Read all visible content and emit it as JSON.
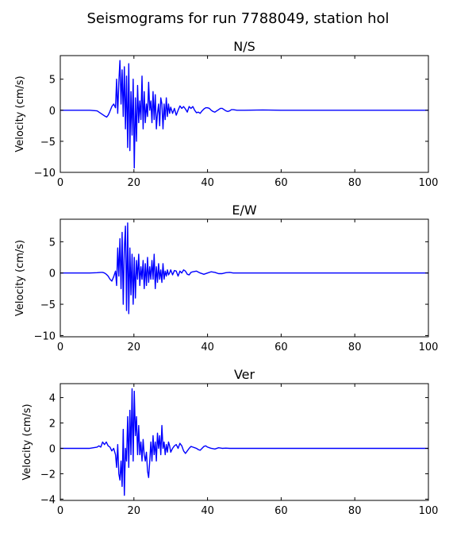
{
  "figure": {
    "title": "Seismograms for run 7788049, station hol"
  },
  "chart_data": [
    {
      "type": "line",
      "title": "N/S",
      "xlabel": "",
      "ylabel": "Velocity (cm/s)",
      "xlim": [
        0,
        100
      ],
      "ylim": [
        -10,
        8.8
      ],
      "xticks": [
        0,
        20,
        40,
        60,
        80,
        100
      ],
      "yticks": [
        -10,
        -5,
        0,
        5
      ],
      "grid": false,
      "legend": "none",
      "color": "#0000ff",
      "x": [
        0,
        8,
        10,
        11,
        12,
        12.6,
        13,
        13.4,
        14,
        14.5,
        15,
        15.3,
        15.6,
        15.9,
        16.2,
        16.5,
        16.8,
        17.1,
        17.4,
        17.7,
        18,
        18.3,
        18.6,
        18.9,
        19.2,
        19.5,
        19.8,
        20.1,
        20.4,
        20.7,
        21,
        21.3,
        21.6,
        21.9,
        22.2,
        22.5,
        22.8,
        23.1,
        23.4,
        23.7,
        24,
        24.3,
        24.6,
        24.9,
        25.2,
        25.5,
        25.8,
        26.1,
        26.4,
        26.7,
        27,
        27.3,
        27.6,
        27.9,
        28.2,
        28.5,
        28.8,
        29.1,
        29.4,
        29.7,
        30,
        30.5,
        31,
        31.5,
        32,
        32.5,
        33,
        33.5,
        34,
        34.5,
        35,
        35.5,
        36,
        36.5,
        37,
        37.5,
        38,
        38.5,
        39,
        39.5,
        40,
        40.5,
        41,
        41.5,
        42,
        42.5,
        43,
        43.5,
        44,
        44.5,
        45,
        45.5,
        46,
        46.5,
        47,
        48,
        50,
        55,
        60,
        70,
        80,
        90,
        100
      ],
      "y": [
        0,
        0,
        -0.1,
        -0.5,
        -0.9,
        -1.1,
        -0.8,
        -0.3,
        0.6,
        1.0,
        0.4,
        5.0,
        -0.5,
        4.5,
        8.0,
        1.0,
        6.5,
        -1.0,
        7.0,
        -3.0,
        5.5,
        -6.0,
        7.5,
        -6.5,
        3.0,
        -4.0,
        5.0,
        -9.3,
        2.0,
        -5.0,
        4.0,
        -2.0,
        1.5,
        -1.5,
        5.5,
        -3.0,
        3.0,
        -2.0,
        1.0,
        -1.0,
        4.5,
        0.0,
        1.5,
        -2.0,
        3.0,
        -1.5,
        2.5,
        -3.0,
        -0.5,
        1.0,
        -2.5,
        2.0,
        1.0,
        -3.0,
        1.0,
        -1.5,
        2.0,
        -1.0,
        1.0,
        -0.5,
        0.5,
        -0.5,
        0.3,
        -0.8,
        0.0,
        0.7,
        0.3,
        0.6,
        0.2,
        -0.3,
        0.6,
        0.3,
        0.6,
        0.0,
        -0.4,
        -0.3,
        -0.5,
        -0.1,
        0.2,
        0.4,
        0.4,
        0.3,
        0.0,
        -0.2,
        -0.3,
        -0.1,
        0.1,
        0.3,
        0.3,
        0.1,
        -0.1,
        -0.2,
        -0.1,
        0.1,
        0.1,
        0.0,
        0.0,
        0.05,
        0.0,
        0.0,
        0.0,
        0.0,
        0.0
      ]
    },
    {
      "type": "line",
      "title": "E/W",
      "xlabel": "",
      "ylabel": "Velocity (cm/s)",
      "xlim": [
        0,
        100
      ],
      "ylim": [
        -10.2,
        8.6
      ],
      "xticks": [
        0,
        20,
        40,
        60,
        80,
        100
      ],
      "yticks": [
        -10,
        -5,
        0,
        5
      ],
      "grid": false,
      "legend": "none",
      "color": "#0000ff",
      "x": [
        0,
        8,
        10,
        11,
        11.5,
        12,
        12.5,
        13,
        13.5,
        14,
        14.5,
        15,
        15.3,
        15.6,
        15.9,
        16.2,
        16.5,
        16.8,
        17.1,
        17.4,
        17.7,
        18,
        18.3,
        18.6,
        18.9,
        19.2,
        19.5,
        19.8,
        20.1,
        20.4,
        20.7,
        21,
        21.3,
        21.6,
        21.9,
        22.2,
        22.5,
        22.8,
        23.1,
        23.4,
        23.7,
        24,
        24.3,
        24.6,
        24.9,
        25.2,
        25.5,
        25.8,
        26.1,
        26.4,
        26.7,
        27,
        27.3,
        27.6,
        27.9,
        28.2,
        28.5,
        28.8,
        29.1,
        29.4,
        29.7,
        30,
        30.5,
        31,
        31.5,
        32,
        32.5,
        33,
        33.5,
        34,
        34.5,
        35,
        35.5,
        36,
        37,
        38,
        39,
        40,
        41,
        42,
        43,
        44,
        45,
        46,
        47,
        48,
        50,
        55,
        60,
        70,
        80,
        90,
        100
      ],
      "y": [
        0,
        0,
        0.05,
        0.1,
        0.1,
        0.0,
        -0.2,
        -0.5,
        -1.0,
        -1.3,
        -0.6,
        0.3,
        -2.0,
        4.0,
        -0.5,
        5.5,
        -2.5,
        6.5,
        -5.0,
        4.0,
        7.5,
        -6.0,
        8.0,
        -6.5,
        4.0,
        -3.5,
        3.0,
        -5.0,
        2.5,
        -4.0,
        2.0,
        -1.0,
        3.0,
        -2.0,
        1.0,
        -1.0,
        2.0,
        -2.5,
        1.5,
        -2.0,
        2.5,
        -1.5,
        1.0,
        -1.0,
        2.0,
        -1.0,
        3.0,
        -2.5,
        1.0,
        -1.5,
        1.5,
        -1.0,
        0.5,
        -1.5,
        1.5,
        -1.0,
        0.3,
        -0.5,
        0.5,
        -0.3,
        0.0,
        0.5,
        -0.3,
        0.4,
        0.3,
        -0.5,
        0.3,
        0.0,
        0.5,
        0.3,
        -0.2,
        -0.3,
        0.1,
        0.2,
        0.3,
        0.0,
        -0.2,
        0.0,
        0.2,
        0.1,
        -0.1,
        -0.1,
        0.05,
        0.1,
        0.0,
        0.0,
        0.0,
        0.0,
        0.0,
        0.0,
        0.0,
        0.0,
        0.0
      ]
    },
    {
      "type": "line",
      "title": "Ver",
      "xlabel": "",
      "ylabel": "Velocity (cm/s)",
      "xlim": [
        0,
        100
      ],
      "ylim": [
        -4.1,
        5.1
      ],
      "xticks": [
        0,
        20,
        40,
        60,
        80,
        100
      ],
      "yticks": [
        -4,
        -2,
        0,
        2,
        4
      ],
      "grid": false,
      "legend": "none",
      "color": "#0000ff",
      "x": [
        0,
        8,
        9,
        10,
        10.5,
        11,
        11.5,
        12,
        12.5,
        13,
        13.5,
        14,
        14.5,
        15,
        15.3,
        15.6,
        15.9,
        16.2,
        16.5,
        16.8,
        17.1,
        17.4,
        17.7,
        18,
        18.3,
        18.6,
        18.9,
        19.2,
        19.5,
        19.8,
        20.1,
        20.4,
        20.7,
        21,
        21.3,
        21.6,
        21.9,
        22.2,
        22.5,
        22.8,
        23.1,
        23.4,
        23.7,
        24,
        24.3,
        24.6,
        24.9,
        25.2,
        25.5,
        25.8,
        26.1,
        26.4,
        26.7,
        27,
        27.3,
        27.6,
        27.9,
        28.2,
        28.5,
        28.8,
        29.1,
        29.4,
        29.7,
        30,
        30.5,
        31,
        31.5,
        32,
        32.5,
        33,
        33.5,
        34,
        34.5,
        35,
        35.5,
        36,
        36.5,
        37,
        37.5,
        38,
        38.5,
        39,
        39.5,
        40,
        40.5,
        41,
        42,
        43,
        44,
        45,
        46,
        47,
        48,
        50,
        55,
        60,
        70,
        80,
        90,
        100
      ],
      "y": [
        0,
        0,
        0.05,
        0.1,
        0.2,
        0.1,
        0.5,
        0.3,
        0.5,
        0.2,
        0.1,
        -0.2,
        0.0,
        -0.5,
        -1.5,
        0.3,
        -2.0,
        -2.5,
        -1.0,
        -3.0,
        1.5,
        -3.7,
        0.0,
        -1.0,
        2.5,
        -1.5,
        3.0,
        -0.5,
        4.7,
        -1.0,
        4.5,
        1.0,
        2.5,
        -0.5,
        1.8,
        -0.5,
        0.5,
        -1.0,
        0.7,
        -0.5,
        -1.0,
        -0.3,
        -1.8,
        -2.3,
        -1.0,
        0.5,
        -1.0,
        1.0,
        -0.5,
        0.5,
        -1.0,
        1.2,
        0.0,
        1.0,
        -0.5,
        1.8,
        0.0,
        0.5,
        -0.5,
        0.3,
        -0.3,
        0.5,
        0.2,
        -0.3,
        0.0,
        0.2,
        0.3,
        0.0,
        0.4,
        0.2,
        -0.2,
        -0.4,
        -0.2,
        0.0,
        0.15,
        0.1,
        0.05,
        0.0,
        -0.1,
        -0.15,
        0.0,
        0.15,
        0.2,
        0.1,
        0.05,
        0.0,
        -0.05,
        0.05,
        0.0,
        0.02,
        0.0,
        0.0,
        0.0,
        0.0,
        0.0,
        0.0,
        0.0,
        0.0,
        0.0,
        0.0
      ]
    }
  ]
}
